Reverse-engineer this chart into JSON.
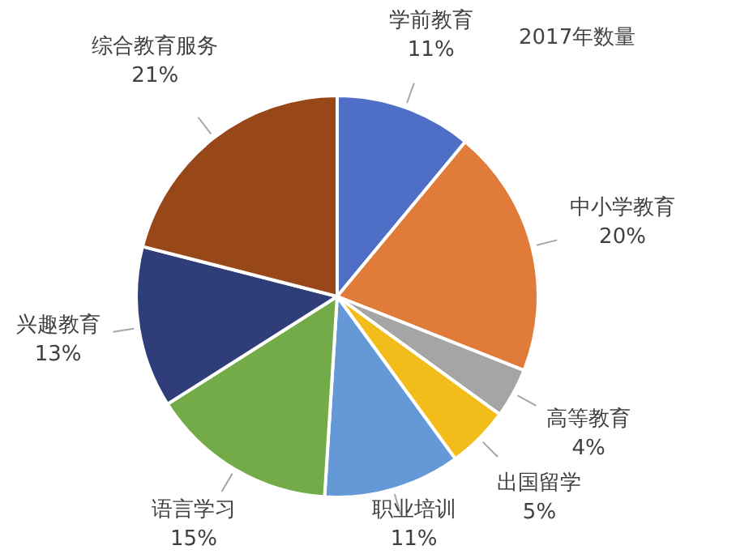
{
  "chart_data": {
    "type": "pie",
    "title": "2017年数量",
    "categories": [
      "学前教育",
      "中小学教育",
      "高等教育",
      "出国留学",
      "职业培训",
      "语言学习",
      "兴趣教育",
      "综合教育服务"
    ],
    "values": [
      11,
      20,
      4,
      5,
      11,
      15,
      13,
      21
    ],
    "colors": [
      "#4f6fc6",
      "#e07b39",
      "#a5a5a5",
      "#f2bd1a",
      "#6498d6",
      "#72ab48",
      "#2f3e78",
      "#984718"
    ],
    "value_labels": [
      "11%",
      "20%",
      "4%",
      "5%",
      "11%",
      "15%",
      "13%",
      "21%"
    ],
    "legend": false
  }
}
